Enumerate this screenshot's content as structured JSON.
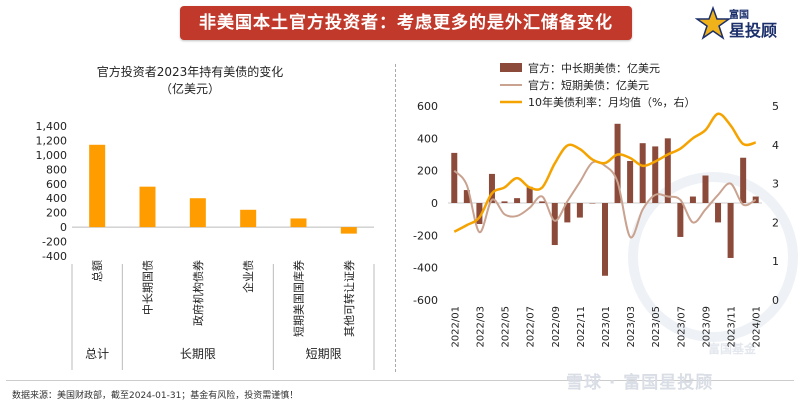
{
  "header": {
    "title": "非美国本土官方投资者：考虑更多的是外汇储备变化",
    "logo_top": "富国",
    "logo_main": "星投顾"
  },
  "footer": {
    "source": "数据来源：美国财政部，截至2024-01-31；基金有风险，投资需谨慎！",
    "watermark": "雪球 · 富国星投顾",
    "watermark2": "富国基金"
  },
  "colors": {
    "banner": "#c0392b",
    "bar": "#8b4a3a",
    "short_line": "#c9a290",
    "rate_line": "#f5a300"
  },
  "chart_data": [
    {
      "type": "bar",
      "title": "官方投资者2023年持有美债的变化",
      "subtitle": "（亿美元）",
      "categories": [
        "总额",
        "中长期国债",
        "政府机构债券",
        "企业债",
        "短期美国国库券",
        "其他可转让证券"
      ],
      "values": [
        1140,
        560,
        400,
        240,
        120,
        -90
      ],
      "groups": [
        {
          "label": "总计",
          "from": 0,
          "to": 0
        },
        {
          "label": "长期限",
          "from": 1,
          "to": 3
        },
        {
          "label": "短期限",
          "from": 4,
          "to": 5
        }
      ],
      "yticks": [
        "-400",
        "-200",
        "0",
        "200",
        "400",
        "600",
        "800",
        "1,000",
        "1,200",
        "1,400"
      ],
      "ylim": [
        -400,
        1400
      ],
      "grid": false
    },
    {
      "type": "bar+line",
      "x": [
        "2022/01",
        "2022/02",
        "2022/03",
        "2022/04",
        "2022/05",
        "2022/06",
        "2022/07",
        "2022/08",
        "2022/09",
        "2022/10",
        "2022/11",
        "2022/12",
        "2023/01",
        "2023/02",
        "2023/03",
        "2023/04",
        "2023/05",
        "2023/06",
        "2023/07",
        "2023/08",
        "2023/09",
        "2023/10",
        "2023/11",
        "2023/12",
        "2024/01"
      ],
      "x_tick_labels": [
        "2022/01",
        "2022/03",
        "2022/05",
        "2022/07",
        "2022/09",
        "2022/11",
        "2023/01",
        "2023/03",
        "2023/05",
        "2023/07",
        "2023/09",
        "2023/11",
        "2024/01"
      ],
      "series": [
        {
          "name": "官方：中长期美债：亿美元",
          "kind": "bar",
          "axis": "left",
          "values": [
            310,
            80,
            -130,
            180,
            10,
            30,
            100,
            10,
            -260,
            -120,
            -90,
            0,
            -450,
            490,
            260,
            370,
            350,
            400,
            -210,
            40,
            170,
            -120,
            -340,
            280,
            40
          ]
        },
        {
          "name": "官方：短期美债：亿美元",
          "kind": "line",
          "axis": "left",
          "values": [
            200,
            110,
            -180,
            20,
            -70,
            -80,
            -30,
            40,
            -110,
            10,
            130,
            250,
            230,
            130,
            -210,
            -40,
            50,
            40,
            20,
            -120,
            -40,
            50,
            120,
            -10,
            20
          ]
        },
        {
          "name": "10年美债利率：月均值（%，右）",
          "kind": "line",
          "axis": "right",
          "values": [
            1.76,
            1.93,
            2.13,
            2.75,
            2.9,
            3.14,
            2.9,
            2.9,
            3.52,
            3.98,
            3.89,
            3.62,
            3.53,
            3.75,
            3.66,
            3.46,
            3.57,
            3.75,
            3.9,
            4.17,
            4.38,
            4.8,
            4.5,
            4.02,
            4.06
          ]
        }
      ],
      "ylim_left": [
        -600,
        600
      ],
      "ylim_right": [
        0,
        5
      ],
      "yticks_left": [
        "-600",
        "-400",
        "-200",
        "0",
        "200",
        "400",
        "600"
      ],
      "yticks_right": [
        "0",
        "1",
        "2",
        "3",
        "4",
        "5"
      ],
      "legend_position": "top",
      "grid": false
    }
  ]
}
